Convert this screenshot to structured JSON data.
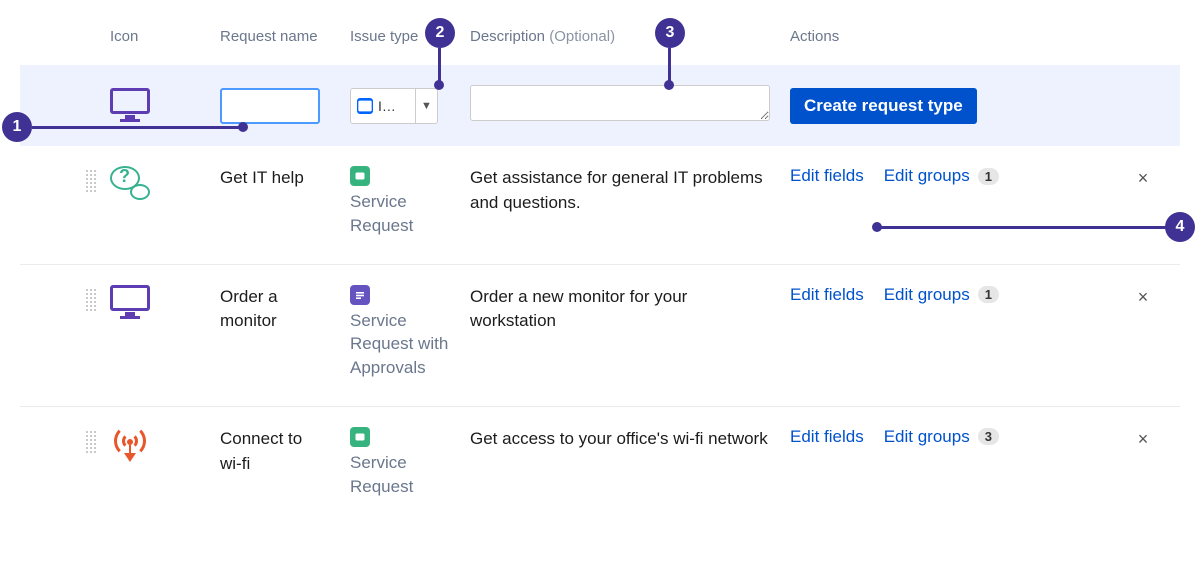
{
  "colors": {
    "accent_purple": "#403294",
    "link_blue": "#0052cc",
    "header_text": "#6b778c",
    "row_bg_create": "#eef2ff",
    "badge_green": "#36b37e",
    "badge_purple": "#6554c0",
    "icon_purple": "#5e3db3",
    "icon_teal": "#36b28f",
    "icon_orange": "#e8562a"
  },
  "headers": {
    "icon": "Icon",
    "request_name": "Request name",
    "issue_type": "Issue type",
    "description": "Description",
    "description_optional": "(Optional)",
    "actions": "Actions"
  },
  "create_row": {
    "name_value": "",
    "type_short": "I…",
    "desc_value": "",
    "button_label": "Create request type"
  },
  "rows": [
    {
      "icon": "help",
      "icon_color": "#36b28f",
      "name": "Get IT help",
      "issue_type_label": "Service Request",
      "issue_type_badge_color": "#36b37e",
      "description": "Get assistance for general IT problems and questions.",
      "group_count": "1"
    },
    {
      "icon": "monitor",
      "icon_color": "#5e3db3",
      "name": "Order a monitor",
      "issue_type_label": "Service Request with Approvals",
      "issue_type_badge_color": "#6554c0",
      "description": "Order a new monitor for your workstation",
      "group_count": "1"
    },
    {
      "icon": "wifi",
      "icon_color": "#e8562a",
      "name": "Connect to wi-fi",
      "issue_type_label": "Service Request",
      "issue_type_badge_color": "#36b37e",
      "description": "Get access to your office's wi-fi network",
      "group_count": "3"
    }
  ],
  "action_labels": {
    "edit_fields": "Edit fields",
    "edit_groups": "Edit groups",
    "delete": "×"
  },
  "callouts": {
    "c1": "1",
    "c2": "2",
    "c3": "3",
    "c4": "4"
  }
}
